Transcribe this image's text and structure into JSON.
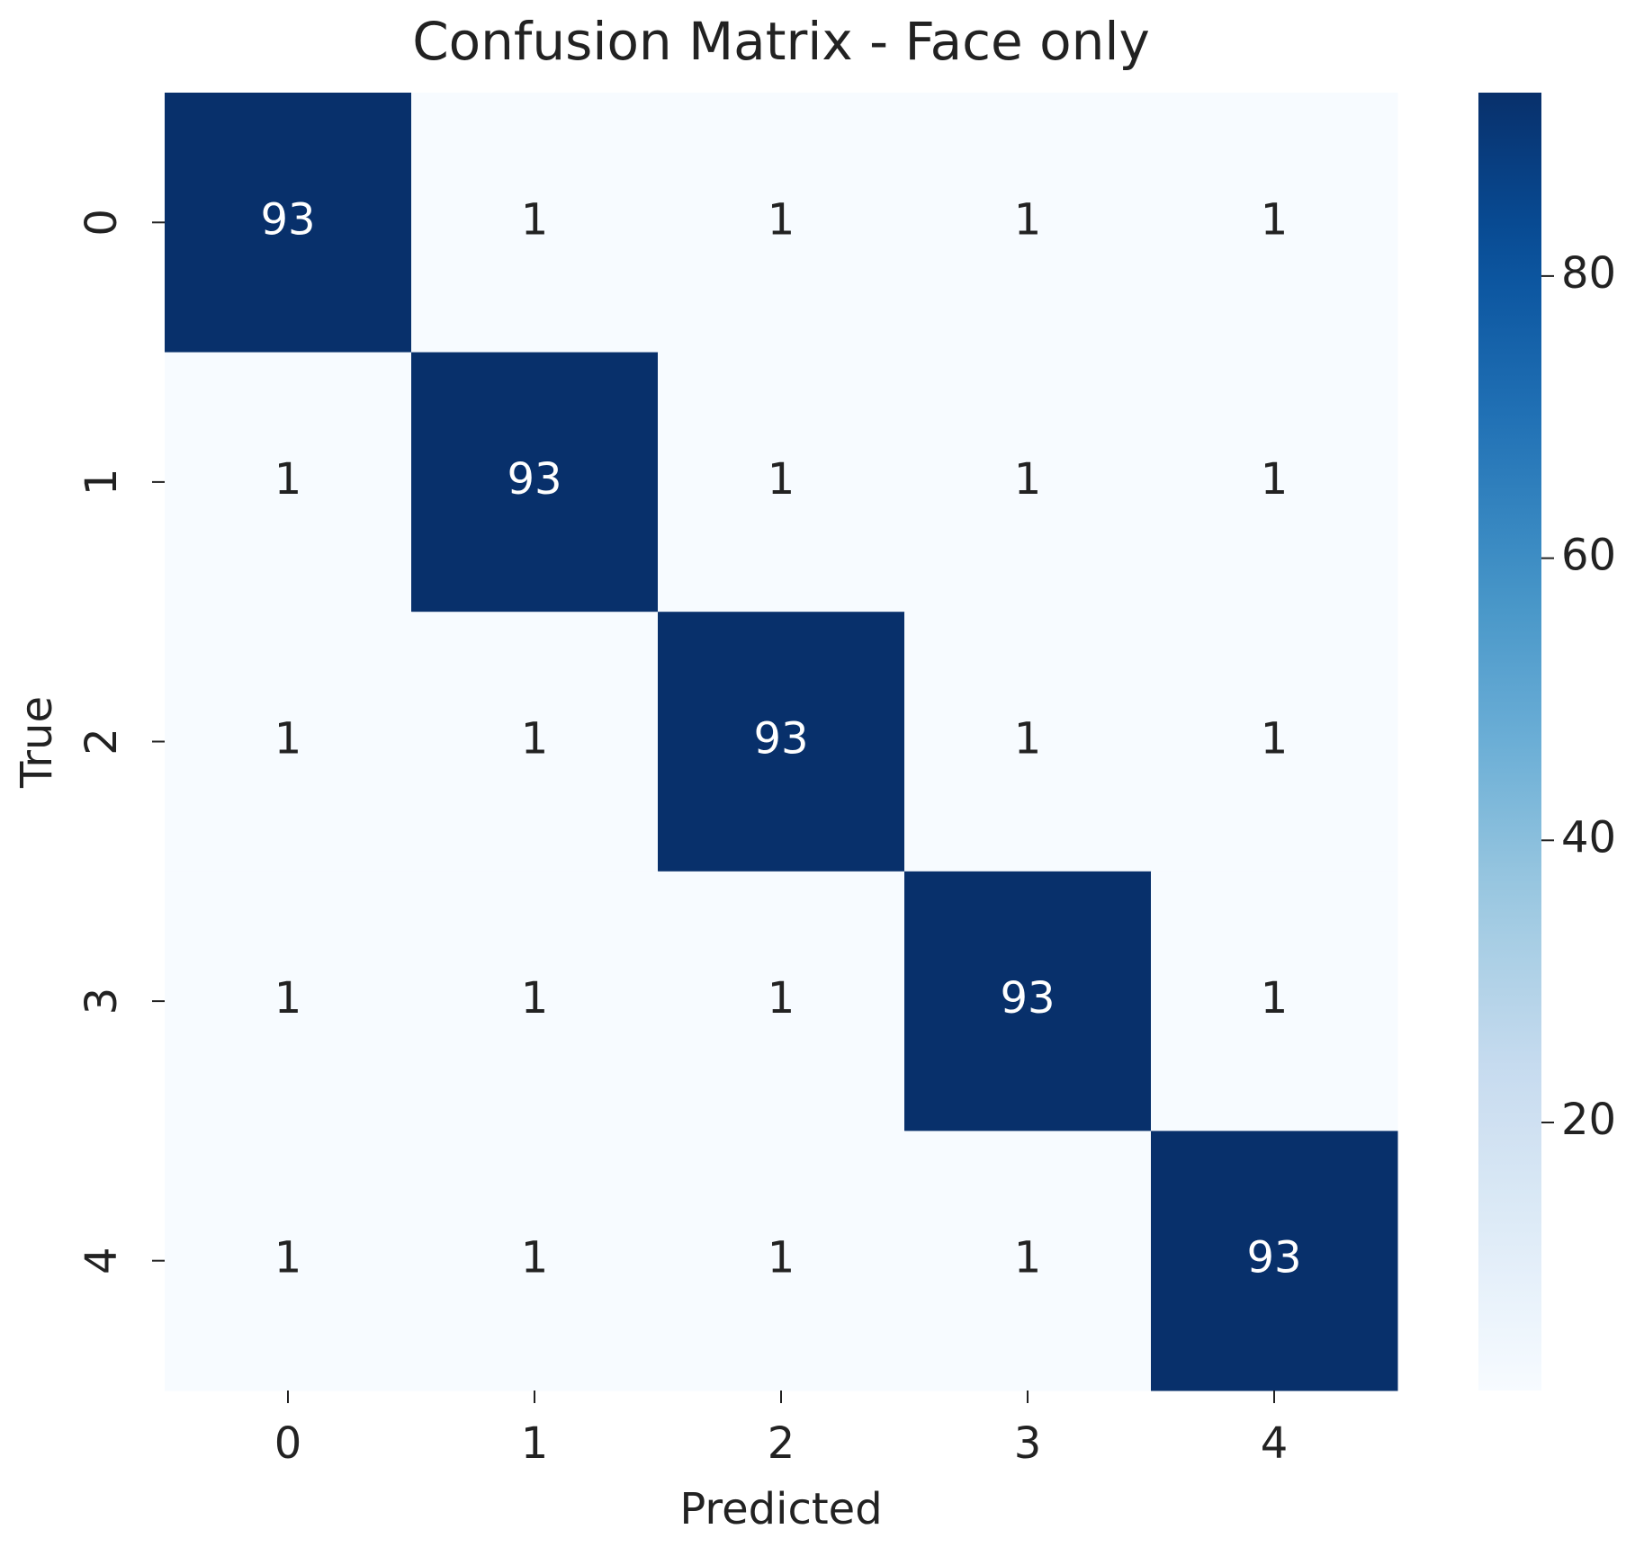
{
  "chart_data": {
    "type": "heatmap",
    "title": "Confusion Matrix - Face only",
    "x_label": "Predicted",
    "y_label": "True",
    "x_categories": [
      "0",
      "1",
      "2",
      "3",
      "4"
    ],
    "y_categories": [
      "0",
      "1",
      "2",
      "3",
      "4"
    ],
    "values": [
      [
        93,
        1,
        1,
        1,
        1
      ],
      [
        1,
        93,
        1,
        1,
        1
      ],
      [
        1,
        1,
        93,
        1,
        1
      ],
      [
        1,
        1,
        1,
        93,
        1
      ],
      [
        1,
        1,
        1,
        1,
        93
      ]
    ],
    "colormap": "Blues",
    "colorbar": {
      "lim": [
        1,
        93
      ],
      "ticks": [
        20,
        40,
        60,
        80
      ]
    }
  }
}
